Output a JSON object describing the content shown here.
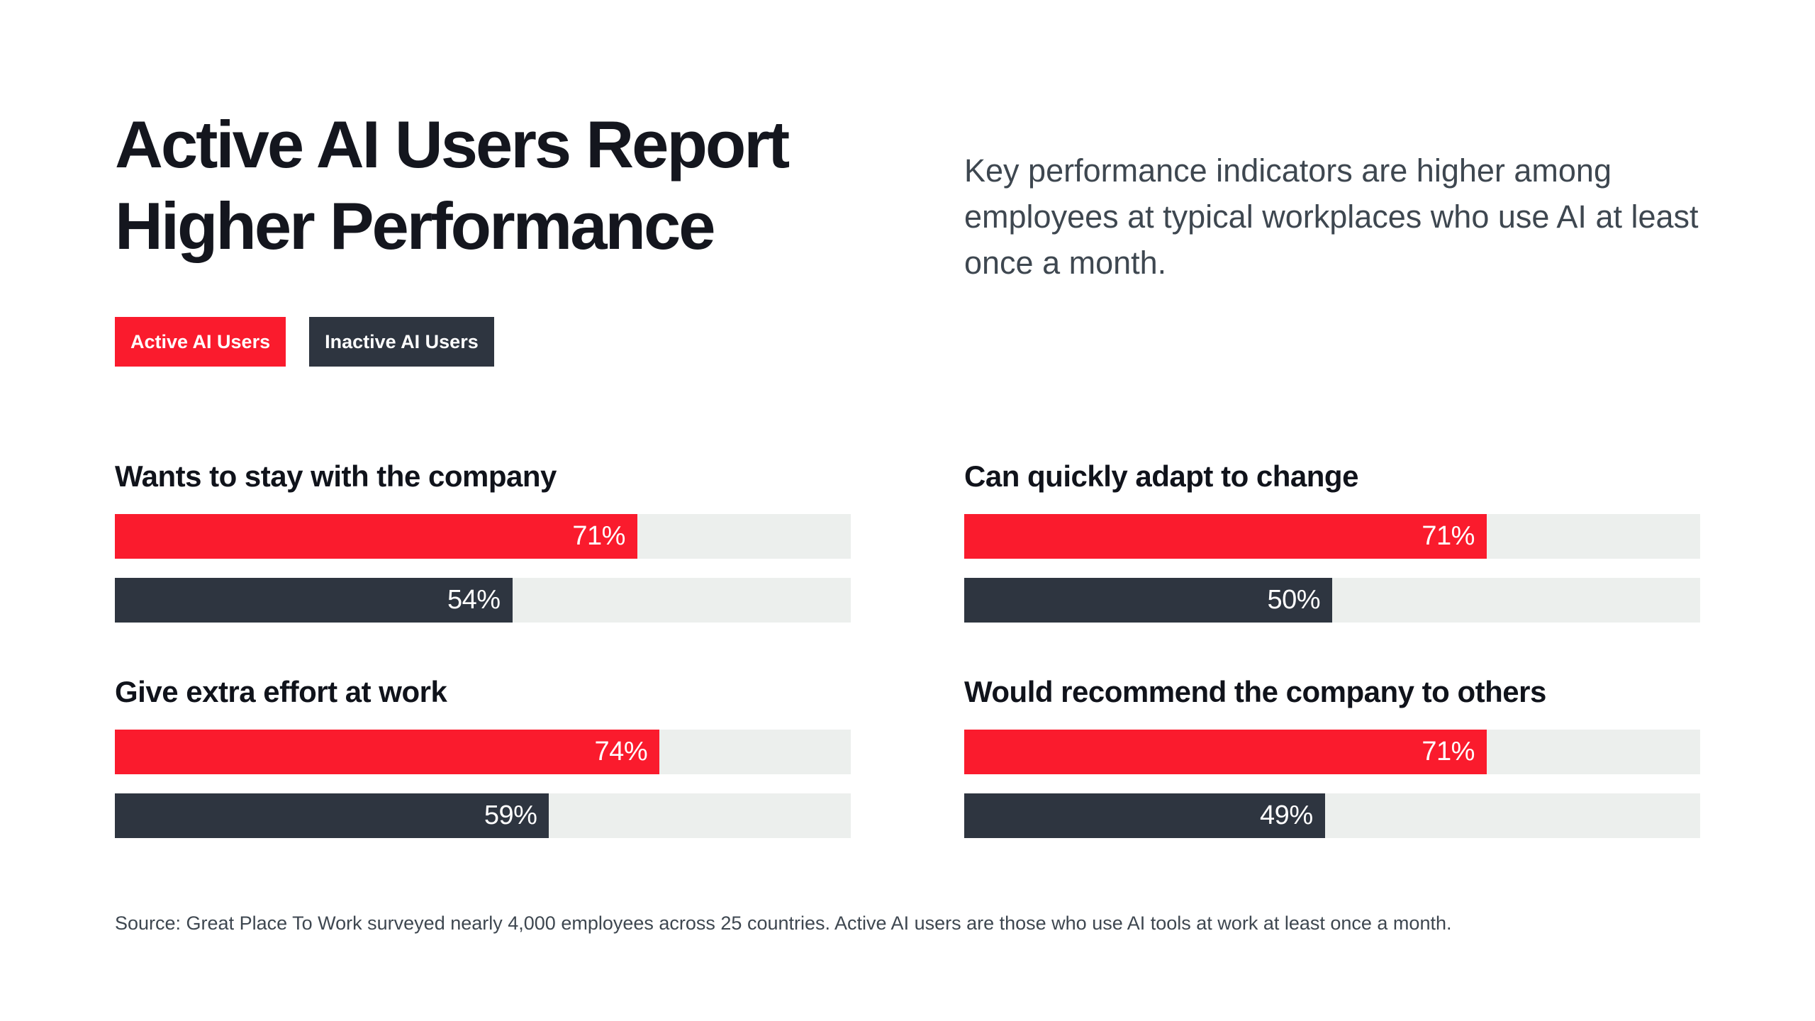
{
  "header": {
    "title_line1": "Active AI Users Report",
    "title_line2": "Higher Performance",
    "subtitle": "Key performance indicators are higher among employees at typical workplaces who use AI at least once a month."
  },
  "legend": {
    "items": [
      {
        "label": "Active AI Users",
        "color": "#FA1B2D"
      },
      {
        "label": "Inactive AI Users",
        "color": "#2E3540"
      }
    ]
  },
  "footer": {
    "source": "Source: Great Place To Work surveyed nearly 4,000 employees across 25 countries. Active AI users are those who use AI tools at work at least once a month."
  },
  "colors": {
    "active_series": "#FA1B2D",
    "inactive_series": "#2E3540",
    "bar_track": "#ECEFED",
    "heading_text": "#14161E",
    "body_text": "#3E4750",
    "value_label": "#FFFFFF",
    "background": "#FFFFFF"
  },
  "chart_data": {
    "type": "bar",
    "orientation": "horizontal",
    "layout": "2x2-grid",
    "title": "Active AI Users Report Higher Performance",
    "value_unit": "%",
    "xlim": [
      0,
      100
    ],
    "grid": false,
    "legend_position": "top-left",
    "categories": [
      "Wants to stay with the company",
      "Can quickly adapt to change",
      "Give extra effort at work",
      "Would recommend the company to others"
    ],
    "series": [
      {
        "name": "Active AI Users",
        "color": "#FA1B2D",
        "values": [
          71,
          71,
          74,
          71
        ]
      },
      {
        "name": "Inactive AI Users",
        "color": "#2E3540",
        "values": [
          54,
          50,
          59,
          49
        ]
      }
    ]
  }
}
